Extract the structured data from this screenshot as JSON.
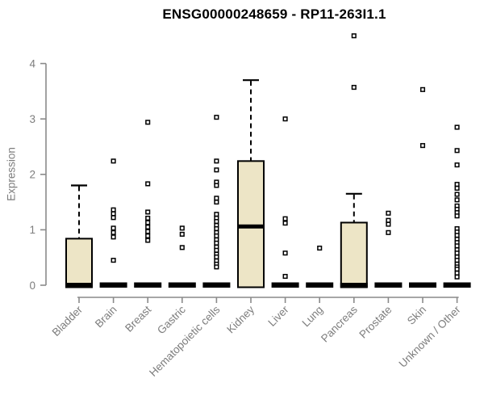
{
  "chart_data": {
    "type": "boxplot",
    "title": "ENSG00000248659 - RP11-263I1.1",
    "ylabel": "Expression",
    "yticks": [
      0,
      1,
      2,
      3,
      4
    ],
    "ylim": [
      0,
      4.6
    ],
    "grid": false,
    "legend": "none",
    "colors": {
      "box_fill": "#EDE5C6",
      "box_stroke": "#000000",
      "median": "#000000",
      "whisker": "#000000",
      "axis": "#8a8a8a",
      "tick_label": "#7d7d7d",
      "title": "#000000",
      "outlier_fill": "#ffffff",
      "outlier_stroke": "#000000"
    },
    "categories": [
      {
        "label": "Bladder",
        "box": {
          "low": 0,
          "q1": 0,
          "median": 0,
          "q3": 0.84,
          "high": 1.8
        },
        "outliers": []
      },
      {
        "label": "Brain",
        "box": null,
        "outliers": [
          2.24,
          1.36,
          1.29,
          1.22,
          1.03,
          0.95,
          0.87,
          0.45
        ]
      },
      {
        "label": "Breast",
        "box": null,
        "outliers": [
          2.94,
          1.83,
          1.32,
          1.21,
          1.13,
          1.05,
          0.97,
          0.89,
          0.81
        ]
      },
      {
        "label": "Gastric",
        "box": null,
        "outliers": [
          1.03,
          0.92,
          0.68
        ]
      },
      {
        "label": "Hematopoietic cells",
        "box": null,
        "outliers": [
          3.03,
          2.24,
          2.08,
          1.86,
          1.8,
          1.57,
          1.5,
          1.28,
          1.21,
          1.15,
          1.08,
          1.02,
          0.95,
          0.89,
          0.82,
          0.76,
          0.69,
          0.63,
          0.56,
          0.51,
          0.44,
          0.38,
          0.33
        ]
      },
      {
        "label": "Kidney",
        "box": {
          "low": 0,
          "q1": 0,
          "median": 1.06,
          "q3": 2.24,
          "high": 3.7
        },
        "outliers": []
      },
      {
        "label": "Liver",
        "box": null,
        "outliers": [
          3.0,
          1.2,
          1.12,
          0.58,
          0.16
        ]
      },
      {
        "label": "Lung",
        "box": null,
        "outliers": [
          0.67
        ]
      },
      {
        "label": "Pancreas",
        "box": {
          "low": 0,
          "q1": 0,
          "median": 0,
          "q3": 1.13,
          "high": 1.65
        },
        "outliers": [
          4.5,
          3.57
        ]
      },
      {
        "label": "Prostate",
        "box": null,
        "outliers": [
          1.3,
          1.17,
          1.1,
          0.95
        ]
      },
      {
        "label": "Skin",
        "box": null,
        "outliers": [
          3.53,
          2.52
        ]
      },
      {
        "label": "Unknown / Other",
        "box": null,
        "outliers": [
          2.85,
          2.43,
          2.17,
          1.82,
          1.75,
          1.64,
          1.54,
          1.43,
          1.37,
          1.31,
          1.25,
          1.02,
          0.96,
          0.9,
          0.83,
          0.77,
          0.71,
          0.64,
          0.58,
          0.51,
          0.45,
          0.38,
          0.33,
          0.29,
          0.22,
          0.15
        ]
      }
    ]
  }
}
